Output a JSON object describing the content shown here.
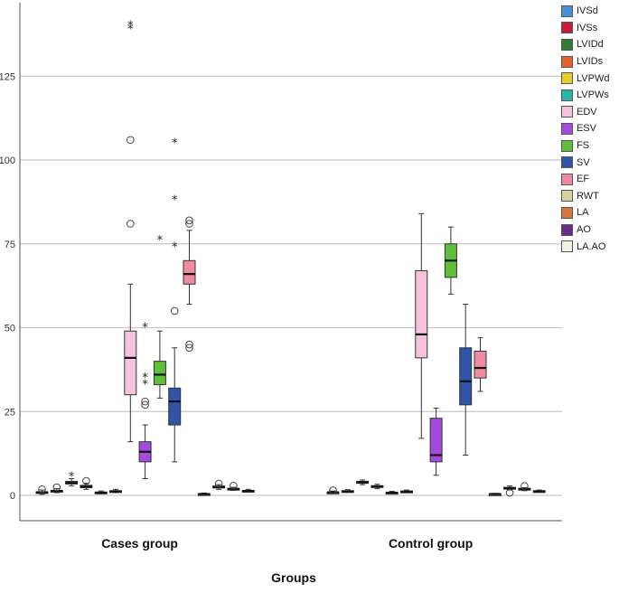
{
  "chart_data": {
    "type": "boxplot",
    "title": "",
    "xlabel": "Groups",
    "ylabel": "",
    "ylim": [
      -5,
      143
    ],
    "yticks": [
      0,
      25,
      50,
      75,
      100,
      125
    ],
    "categories": [
      "Cases group",
      "Control group"
    ],
    "legend_position": "right",
    "series": [
      {
        "name": "IVSd",
        "color": "#4a90d9",
        "boxes": [
          {
            "min": 0.3,
            "q1": 0.6,
            "median": 0.9,
            "q3": 1.1,
            "max": 1.6,
            "outliers": [
              {
                "v": 1.8,
                "m": "circle"
              }
            ]
          },
          {
            "min": 0.5,
            "q1": 0.8,
            "median": 0.9,
            "q3": 1.0,
            "max": 1.3,
            "outliers": [
              {
                "v": 1.5,
                "m": "circle"
              }
            ]
          }
        ]
      },
      {
        "name": "IVSs",
        "color": "#c81e3c",
        "boxes": [
          {
            "min": 0.8,
            "q1": 1.1,
            "median": 1.3,
            "q3": 1.5,
            "max": 2.0,
            "outliers": [
              {
                "v": 2.4,
                "m": "circle"
              }
            ]
          },
          {
            "min": 0.9,
            "q1": 1.1,
            "median": 1.2,
            "q3": 1.4,
            "max": 1.7,
            "outliers": []
          }
        ]
      },
      {
        "name": "LVIDd",
        "color": "#2e7d32",
        "boxes": [
          {
            "min": 2.8,
            "q1": 3.4,
            "median": 3.7,
            "q3": 4.2,
            "max": 5.0,
            "outliers": [
              {
                "v": 5.5,
                "m": "star"
              }
            ]
          },
          {
            "min": 3.2,
            "q1": 3.6,
            "median": 3.9,
            "q3": 4.2,
            "max": 4.6,
            "outliers": []
          }
        ]
      },
      {
        "name": "LVIDs",
        "color": "#e8622a",
        "boxes": [
          {
            "min": 1.8,
            "q1": 2.3,
            "median": 2.6,
            "q3": 3.0,
            "max": 3.6,
            "outliers": [
              {
                "v": 4.3,
                "m": "circle"
              }
            ]
          },
          {
            "min": 2.0,
            "q1": 2.4,
            "median": 2.6,
            "q3": 2.9,
            "max": 3.3,
            "outliers": []
          }
        ]
      },
      {
        "name": "LVPWd",
        "color": "#e6cf2a",
        "boxes": [
          {
            "min": 0.5,
            "q1": 0.7,
            "median": 0.8,
            "q3": 1.0,
            "max": 1.3,
            "outliers": []
          },
          {
            "min": 0.5,
            "q1": 0.7,
            "median": 0.8,
            "q3": 0.9,
            "max": 1.2,
            "outliers": []
          }
        ]
      },
      {
        "name": "LVPWs",
        "color": "#2ab3a8",
        "boxes": [
          {
            "min": 0.8,
            "q1": 1.0,
            "median": 1.2,
            "q3": 1.4,
            "max": 1.8,
            "outliers": []
          },
          {
            "min": 0.8,
            "q1": 1.0,
            "median": 1.1,
            "q3": 1.3,
            "max": 1.6,
            "outliers": []
          }
        ]
      },
      {
        "name": "EDV",
        "color": "#f5c2dc",
        "boxes": [
          {
            "min": 16,
            "q1": 30,
            "median": 41,
            "q3": 49,
            "max": 63,
            "outliers": [
              {
                "v": 81,
                "m": "circle"
              },
              {
                "v": 106,
                "m": "circle"
              },
              {
                "v": 139,
                "m": "star"
              },
              {
                "v": 140,
                "m": "star"
              }
            ]
          },
          {
            "min": 17,
            "q1": 41,
            "median": 48,
            "q3": 67,
            "max": 84,
            "outliers": []
          }
        ]
      },
      {
        "name": "ESV",
        "color": "#a64be0",
        "boxes": [
          {
            "min": 5,
            "q1": 10,
            "median": 13,
            "q3": 16,
            "max": 21,
            "outliers": [
              {
                "v": 27,
                "m": "circle"
              },
              {
                "v": 28,
                "m": "circle"
              },
              {
                "v": 33,
                "m": "star"
              },
              {
                "v": 35,
                "m": "star"
              },
              {
                "v": 50,
                "m": "star"
              }
            ]
          },
          {
            "min": 6,
            "q1": 10,
            "median": 12,
            "q3": 23,
            "max": 26,
            "outliers": []
          }
        ]
      },
      {
        "name": "FS",
        "color": "#5fbf3a",
        "boxes": [
          {
            "min": 29,
            "q1": 33,
            "median": 36,
            "q3": 40,
            "max": 49,
            "outliers": [
              {
                "v": 76,
                "m": "star"
              }
            ]
          },
          {
            "min": 60,
            "q1": 65,
            "median": 70,
            "q3": 75,
            "max": 80,
            "outliers": []
          }
        ]
      },
      {
        "name": "SV",
        "color": "#2f54a8",
        "boxes": [
          {
            "min": 10,
            "q1": 21,
            "median": 28,
            "q3": 32,
            "max": 44,
            "outliers": [
              {
                "v": 55,
                "m": "circle"
              },
              {
                "v": 74,
                "m": "star"
              },
              {
                "v": 88,
                "m": "star"
              },
              {
                "v": 105,
                "m": "star"
              }
            ]
          },
          {
            "min": 12,
            "q1": 27,
            "median": 34,
            "q3": 44,
            "max": 57,
            "outliers": []
          }
        ]
      },
      {
        "name": "EF",
        "color": "#f08aa0",
        "boxes": [
          {
            "min": 57,
            "q1": 63,
            "median": 66,
            "q3": 70,
            "max": 79,
            "outliers": [
              {
                "v": 44,
                "m": "circle"
              },
              {
                "v": 45,
                "m": "circle"
              },
              {
                "v": 81,
                "m": "circle"
              },
              {
                "v": 82,
                "m": "circle"
              }
            ]
          },
          {
            "min": 31,
            "q1": 35,
            "median": 38,
            "q3": 43,
            "max": 47,
            "outliers": []
          }
        ]
      },
      {
        "name": "RWT",
        "color": "#d8d29a",
        "boxes": [
          {
            "min": 0.2,
            "q1": 0.3,
            "median": 0.4,
            "q3": 0.5,
            "max": 0.7,
            "outliers": []
          },
          {
            "min": 0.2,
            "q1": 0.3,
            "median": 0.4,
            "q3": 0.45,
            "max": 0.6,
            "outliers": []
          }
        ]
      },
      {
        "name": "LA",
        "color": "#d9773a",
        "boxes": [
          {
            "min": 1.8,
            "q1": 2.2,
            "median": 2.5,
            "q3": 2.8,
            "max": 3.2,
            "outliers": [
              {
                "v": 3.5,
                "m": "circle"
              }
            ]
          },
          {
            "min": 1.6,
            "q1": 1.9,
            "median": 2.1,
            "q3": 2.4,
            "max": 2.8,
            "outliers": [
              {
                "v": 0.8,
                "m": "circle"
              }
            ]
          }
        ]
      },
      {
        "name": "AO",
        "color": "#6a2c8c",
        "boxes": [
          {
            "min": 1.5,
            "q1": 1.7,
            "median": 1.9,
            "q3": 2.1,
            "max": 2.4,
            "outliers": [
              {
                "v": 2.9,
                "m": "circle"
              }
            ]
          },
          {
            "min": 1.4,
            "q1": 1.7,
            "median": 1.9,
            "q3": 2.1,
            "max": 2.3,
            "outliers": [
              {
                "v": 2.8,
                "m": "circle"
              }
            ]
          }
        ]
      },
      {
        "name": "LA.AO",
        "color": "#f4f0dc",
        "boxes": [
          {
            "min": 1.0,
            "q1": 1.2,
            "median": 1.3,
            "q3": 1.5,
            "max": 1.8,
            "outliers": []
          },
          {
            "min": 0.9,
            "q1": 1.1,
            "median": 1.2,
            "q3": 1.4,
            "max": 1.6,
            "outliers": []
          }
        ]
      }
    ]
  }
}
